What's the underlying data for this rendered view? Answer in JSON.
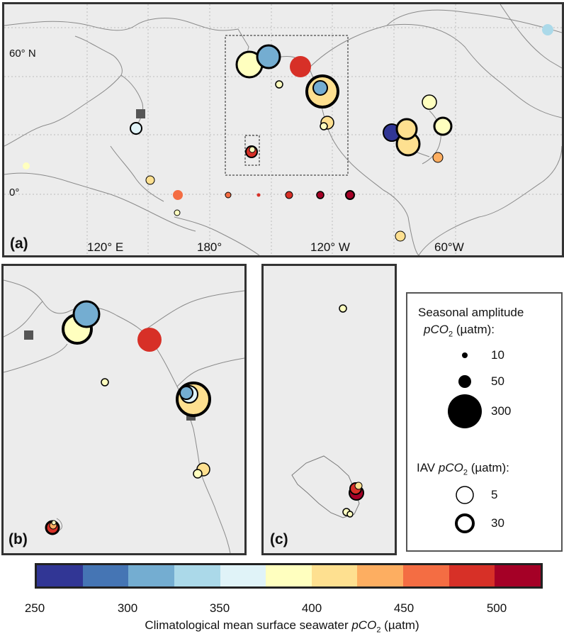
{
  "panel_labels": {
    "a": "(a)",
    "b": "(b)",
    "c": "(c)"
  },
  "map_a": {
    "lat_labels": [
      "60° N",
      "0°"
    ],
    "lon_labels": [
      "120° E",
      "180°",
      "120° W",
      "60°W"
    ]
  },
  "legend": {
    "title_line1": "Seasonal amplitude",
    "title_line2_pre": "pCO",
    "title_line2_sub": "2",
    "title_line2_post": " (µatm):",
    "size_values": [
      "10",
      "50",
      "300"
    ],
    "iav_pre": "IAV ",
    "iav_p": "pCO",
    "iav_sub": "2",
    "iav_post": " (µatm):",
    "iav_values": [
      "5",
      "30"
    ]
  },
  "colorbar": {
    "colors": [
      "#313695",
      "#4575b4",
      "#74add1",
      "#abd9e9",
      "#e0f3f8",
      "#ffffbf",
      "#fee090",
      "#fdae61",
      "#f46d43",
      "#d73027",
      "#a50026"
    ],
    "ticks": [
      "250",
      "300",
      "350",
      "400",
      "450",
      "500"
    ],
    "title_pre": "Climatological mean surface seawater ",
    "title_p": "pCO",
    "title_sub": "2",
    "title_post": " (µatm)"
  }
}
